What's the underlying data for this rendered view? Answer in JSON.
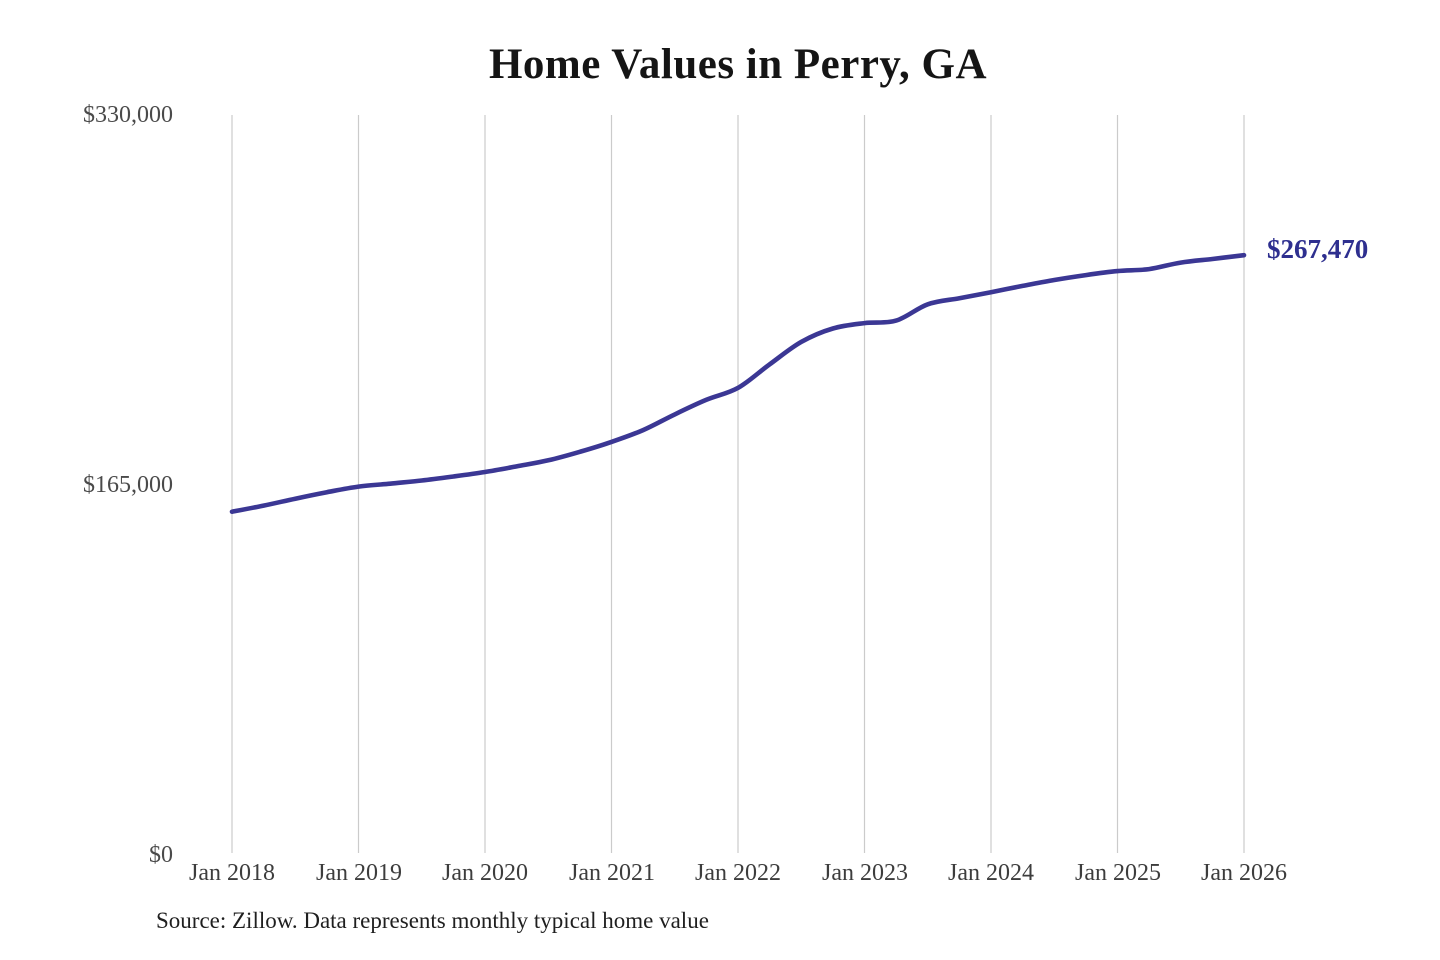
{
  "chart": {
    "title": "Home Values in Perry, GA",
    "end_label": "$267,470",
    "source_note": "Source: Zillow. Data represents monthly typical home value",
    "colors": {
      "line": "#3b3794",
      "end_label": "#2e2f8f",
      "grid": "#cbcbcb",
      "title": "#151515",
      "axis_text": "#444444"
    }
  },
  "chart_data": {
    "type": "line",
    "title": "Home Values in Perry, GA",
    "grid": "vertical-only",
    "legend": "none",
    "ylim": [
      0,
      330000
    ],
    "y_tick_values": [
      0,
      165000,
      330000
    ],
    "y_tick_labels": [
      "$0",
      "$165,000",
      "$330,000"
    ],
    "x_tick_labels": [
      "Jan 2018",
      "Jan 2019",
      "Jan 2020",
      "Jan 2021",
      "Jan 2022",
      "Jan 2023",
      "Jan 2024",
      "Jan 2025",
      "Jan 2026"
    ],
    "x_range_months": [
      "2018-01",
      "2026-01"
    ],
    "latest_value": 267470,
    "latest_label": "$267,470",
    "series": [
      {
        "name": "Monthly typical home value",
        "x": [
          "2018-01",
          "2018-04",
          "2018-07",
          "2018-10",
          "2019-01",
          "2019-04",
          "2019-07",
          "2019-10",
          "2020-01",
          "2020-04",
          "2020-07",
          "2020-10",
          "2021-01",
          "2021-04",
          "2021-07",
          "2021-10",
          "2022-01",
          "2022-04",
          "2022-07",
          "2022-10",
          "2023-01",
          "2023-04",
          "2023-07",
          "2023-10",
          "2024-01",
          "2024-04",
          "2024-07",
          "2024-10",
          "2025-01",
          "2025-04",
          "2025-07",
          "2025-10",
          "2026-01"
        ],
        "values": [
          153100,
          155800,
          158900,
          161800,
          164300,
          165600,
          167000,
          168800,
          170800,
          173300,
          176000,
          179800,
          184200,
          189500,
          196500,
          203000,
          208300,
          218800,
          228800,
          234800,
          237200,
          238300,
          245600,
          248300,
          251000,
          253800,
          256400,
          258600,
          260400,
          261300,
          264200,
          265800,
          267470
        ]
      }
    ]
  }
}
